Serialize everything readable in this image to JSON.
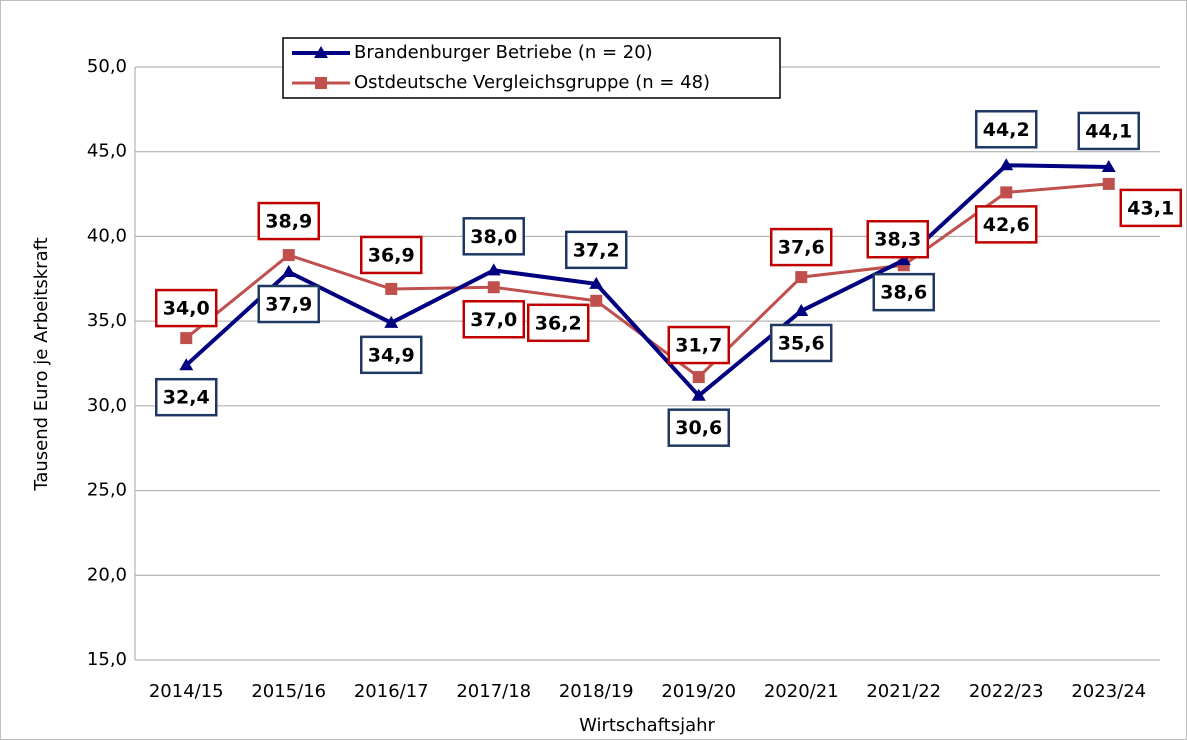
{
  "chart_data": {
    "type": "line",
    "y_label": "Tausend Euro je Arbeitskraft",
    "x_label": "Wirtschaftsjahr",
    "categories": [
      "2014/15",
      "2015/16",
      "2016/17",
      "2017/18",
      "2018/19",
      "2019/20",
      "2020/21",
      "2021/22",
      "2022/23",
      "2023/24"
    ],
    "series": [
      {
        "name": "Brandenburger Betriebe (n = 20)",
        "color": "#000080",
        "marker": "triangle",
        "values": [
          32.4,
          37.9,
          34.9,
          38.0,
          37.2,
          30.6,
          35.6,
          38.6,
          44.2,
          44.1
        ],
        "value_labels": [
          "32,4",
          "37,9",
          "34,9",
          "38,0",
          "37,2",
          "30,6",
          "35,6",
          "38,6",
          "44,2",
          "44,1"
        ]
      },
      {
        "name": "Ostdeutsche Vergleichsgruppe (n = 48)",
        "color": "#c0504d",
        "marker": "square",
        "values": [
          34.0,
          38.9,
          36.9,
          37.0,
          36.2,
          31.7,
          37.6,
          38.3,
          42.6,
          43.1
        ],
        "value_labels": [
          "34,0",
          "38,9",
          "36,9",
          "37,0",
          "36,2",
          "31,7",
          "37,6",
          "38,3",
          "42,6",
          "43,1"
        ]
      }
    ],
    "ylim": [
      15,
      50
    ],
    "yticks": [
      {
        "value": 15,
        "label": "15,0"
      },
      {
        "value": 20,
        "label": "20,0"
      },
      {
        "value": 25,
        "label": "25,0"
      },
      {
        "value": 30,
        "label": "30,0"
      },
      {
        "value": 35,
        "label": "35,0"
      },
      {
        "value": 40,
        "label": "40,0"
      },
      {
        "value": 45,
        "label": "45,0"
      },
      {
        "value": 50,
        "label": "50,0"
      }
    ],
    "grid": true
  }
}
